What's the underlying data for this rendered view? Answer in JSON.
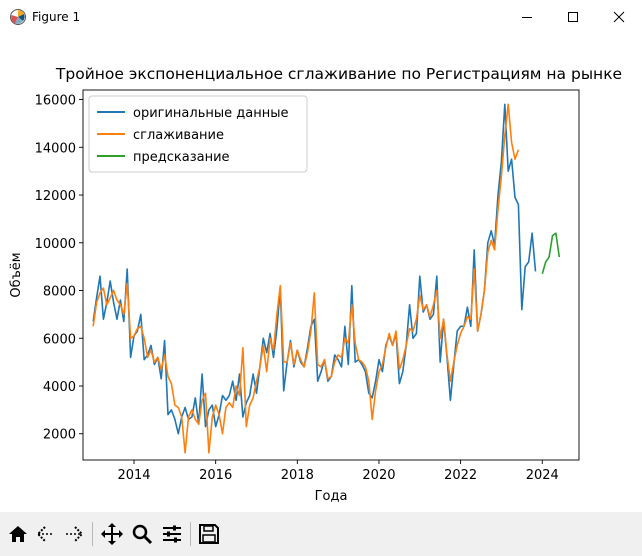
{
  "window": {
    "title": "Figure 1",
    "controls": [
      "minimize",
      "maximize",
      "close"
    ]
  },
  "toolbar": {
    "buttons": [
      "home-icon",
      "back-icon",
      "forward-icon",
      "pan-icon",
      "zoom-icon",
      "configure-subplots-icon",
      "save-icon"
    ]
  },
  "chart_data": {
    "type": "line",
    "title": "Тройное экспоненциальное сглаживание по Регистрациям на рынке",
    "xlabel": "Года",
    "ylabel": "Объём",
    "xlim": [
      2012.75,
      2024.9
    ],
    "ylim": [
      900,
      16400
    ],
    "x_ticks": [
      2014,
      2016,
      2018,
      2020,
      2022,
      2024
    ],
    "x_tick_labels": [
      "2014",
      "2016",
      "2018",
      "2020",
      "2022",
      "2024"
    ],
    "y_ticks": [
      2000,
      4000,
      6000,
      8000,
      10000,
      12000,
      14000,
      16000
    ],
    "y_tick_labels": [
      "2000",
      "4000",
      "6000",
      "8000",
      "10000",
      "12000",
      "14000",
      "16000"
    ],
    "grid": false,
    "legend_position": "top-left",
    "series": [
      {
        "name": "оригинальные данные",
        "color": "#1f77b4",
        "start": [
          2013,
          1
        ],
        "values": [
          6700,
          7700,
          8600,
          6800,
          7500,
          8400,
          7500,
          6800,
          7600,
          6700,
          8900,
          5200,
          6100,
          6300,
          7000,
          5100,
          5300,
          5700,
          4900,
          5200,
          4300,
          5900,
          2800,
          3000,
          2600,
          2000,
          2700,
          3100,
          2600,
          2700,
          3500,
          2400,
          4500,
          2300,
          3000,
          3200,
          2300,
          2800,
          3600,
          3400,
          3600,
          4200,
          3400,
          4500,
          2700,
          3300,
          3600,
          4500,
          3700,
          4800,
          6000,
          5400,
          6200,
          5200,
          6400,
          8100,
          3800,
          5000,
          5900,
          4800,
          5500,
          5000,
          4800,
          5600,
          6500,
          6800,
          4200,
          4600,
          5100,
          4200,
          4400,
          5300,
          5100,
          4800,
          6500,
          4900,
          8200,
          5000,
          5100,
          4900,
          4600,
          3700,
          3500,
          4200,
          5100,
          4600,
          5700,
          6100,
          5700,
          6200,
          4100,
          4600,
          5700,
          7400,
          6000,
          6200,
          8600,
          7100,
          7400,
          6800,
          7000,
          8600,
          5000,
          6800,
          5200,
          3400,
          4900,
          6300,
          6500,
          6500,
          7300,
          6500,
          9700,
          6300,
          7000,
          8000,
          10000,
          10500,
          9900,
          12000,
          13400,
          15800,
          13000,
          13500,
          11900,
          11600,
          7200,
          9000,
          9200,
          10400,
          8800
        ]
      },
      {
        "name": "сглаживание",
        "color": "#ff7f0e",
        "start": [
          2013,
          1
        ],
        "values": [
          6500,
          7500,
          7900,
          8100,
          7400,
          7700,
          8000,
          7600,
          7400,
          7000,
          8300,
          6000,
          6100,
          6400,
          6500,
          6000,
          5200,
          5500,
          5000,
          5200,
          4700,
          5300,
          4400,
          4100,
          3200,
          3100,
          2700,
          1200,
          2700,
          3000,
          2600,
          2400,
          3400,
          3700,
          1200,
          2700,
          3200,
          2800,
          2000,
          3100,
          3300,
          3100,
          4000,
          3600,
          5600,
          2300,
          3200,
          3500,
          4200,
          4800,
          5700,
          4600,
          6000,
          5500,
          7000,
          8200,
          5000,
          5000,
          5800,
          4900,
          5500,
          5100,
          4800,
          5400,
          6300,
          7900,
          4900,
          4800,
          5100,
          4300,
          4400,
          5000,
          5300,
          5200,
          6000,
          5800,
          7400,
          5800,
          5100,
          5000,
          4800,
          4200,
          2600,
          3800,
          4600,
          4900,
          5600,
          6200,
          5700,
          6300,
          4700,
          5100,
          5700,
          6400,
          6300,
          6800,
          7800,
          7200,
          7400,
          6900,
          7400,
          8000,
          6000,
          6800,
          5300,
          4200,
          5000,
          5700,
          6200,
          6500,
          6900,
          6800,
          8900,
          6300,
          7000,
          8000,
          9600,
          10100,
          9700,
          11400,
          12800,
          14500,
          15800,
          14200,
          13500,
          13900
        ]
      },
      {
        "name": "предсказание",
        "color": "#2ca02c",
        "start": [
          2024,
          1
        ],
        "values": [
          8700,
          9200,
          9400,
          10300,
          10400,
          9400
        ]
      }
    ]
  }
}
